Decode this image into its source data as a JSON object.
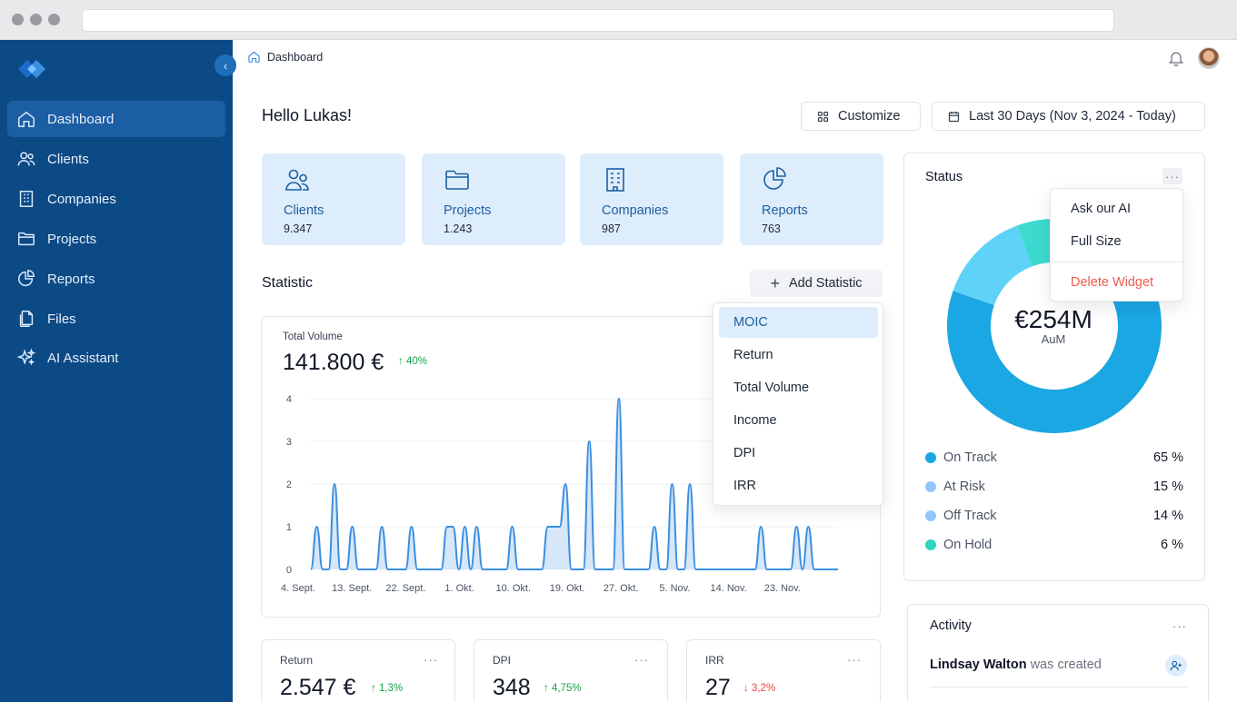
{
  "sidebar": {
    "items": [
      {
        "label": "Dashboard",
        "icon": "home-icon",
        "active": true
      },
      {
        "label": "Clients",
        "icon": "users-icon"
      },
      {
        "label": "Companies",
        "icon": "building-icon"
      },
      {
        "label": "Projects",
        "icon": "folder-icon"
      },
      {
        "label": "Reports",
        "icon": "pie-chart-icon"
      },
      {
        "label": "Files",
        "icon": "files-icon"
      },
      {
        "label": "AI Assistant",
        "icon": "sparkles-icon"
      }
    ]
  },
  "header": {
    "breadcrumb": "Dashboard"
  },
  "greeting": "Hello Lukas!",
  "toolbar": {
    "customize_label": "Customize",
    "date_range_label": "Last 30 Days (Nov 3, 2024 - Today)"
  },
  "cards": [
    {
      "label": "Clients",
      "value": "9.347"
    },
    {
      "label": "Projects",
      "value": "1.243"
    },
    {
      "label": "Companies",
      "value": "987"
    },
    {
      "label": "Reports",
      "value": "763"
    }
  ],
  "statistic": {
    "title": "Statistic",
    "add_label": "Add Statistic",
    "menu": [
      "MOIC",
      "Return",
      "Total Volume",
      "Income",
      "DPI",
      "IRR"
    ],
    "selected": "MOIC"
  },
  "volume": {
    "title": "Total Volume",
    "value": "141.800 €",
    "delta": "40%"
  },
  "chart_data": {
    "type": "area",
    "title": "",
    "xlabel": "",
    "ylabel": "",
    "ylim": [
      0,
      4
    ],
    "yticks": [
      "0",
      "1",
      "2",
      "3",
      "4"
    ],
    "xticks": [
      "4. Sept.",
      "13. Sept.",
      "22. Sept.",
      "1. Okt.",
      "10. Okt.",
      "19. Okt.",
      "27. Okt.",
      "5. Nov.",
      "14. Nov.",
      "23. Nov."
    ],
    "x": [
      0,
      1,
      2,
      3,
      4,
      5,
      6,
      7,
      8,
      9,
      10,
      11,
      12,
      13,
      14,
      15,
      16,
      17,
      18,
      19,
      20,
      21,
      22,
      23,
      24,
      25,
      26,
      27,
      28,
      29,
      30,
      31,
      32,
      33,
      34,
      35,
      36,
      37,
      38,
      39,
      40,
      41,
      42,
      43,
      44,
      45,
      46,
      47,
      48,
      49,
      50,
      51,
      52,
      53,
      54,
      55,
      56,
      57,
      58,
      59,
      60,
      61,
      62,
      63,
      64,
      65,
      66,
      67,
      68,
      69,
      70,
      71,
      72,
      73,
      74,
      75,
      76,
      77,
      78,
      79,
      80,
      81,
      82,
      83,
      84,
      85,
      86,
      87,
      88,
      89
    ],
    "values": [
      0,
      1,
      0,
      0,
      2,
      0,
      0,
      1,
      0,
      0,
      0,
      0,
      1,
      0,
      0,
      0,
      0,
      1,
      0,
      0,
      0,
      0,
      0,
      1,
      1,
      0,
      1,
      0,
      1,
      0,
      0,
      0,
      0,
      0,
      1,
      0,
      0,
      0,
      0,
      0,
      1,
      1,
      1,
      2,
      0,
      0,
      0,
      3,
      0,
      0,
      0,
      0,
      4,
      0,
      0,
      0,
      0,
      0,
      1,
      0,
      0,
      2,
      0,
      0,
      2,
      0,
      0,
      0,
      0,
      0,
      0,
      0,
      0,
      0,
      0,
      0,
      1,
      0,
      0,
      0,
      0,
      0,
      1,
      0,
      1,
      0,
      0,
      0,
      0,
      0
    ],
    "grid": true,
    "color": "#3b8fe0"
  },
  "status": {
    "title": "Status",
    "center_value": "€254M",
    "center_label": "AuM",
    "menu": {
      "ask_ai": "Ask our AI",
      "full_size": "Full Size",
      "delete": "Delete Widget"
    },
    "donut": [
      {
        "name": "On Track",
        "value": 65,
        "color": "#1aa7e3"
      },
      {
        "name": "At Risk",
        "value": 15,
        "color": "#82bff7"
      },
      {
        "name": "Off Track",
        "value": 14,
        "color": "#5ed3f7"
      },
      {
        "name": "On Hold",
        "value": 6,
        "color": "#3ddbcf"
      }
    ],
    "legend": [
      {
        "name": "On Track",
        "pct": "65 %",
        "color": "#1aa7e3"
      },
      {
        "name": "At Risk",
        "pct": "15 %",
        "color": "#93c5fd"
      },
      {
        "name": "Off Track",
        "pct": "14 %",
        "color": "#93c5fd"
      },
      {
        "name": "On Hold",
        "pct": "6 %",
        "color": "#2dd4bf"
      }
    ]
  },
  "activity": {
    "title": "Activity",
    "entries": [
      {
        "name": "Lindsay Walton",
        "text": "was created"
      }
    ]
  },
  "metrics": [
    {
      "title": "Return",
      "value": "2.547 €",
      "delta": "1,3%",
      "dir": "up"
    },
    {
      "title": "DPI",
      "value": "348",
      "delta": "4,75%",
      "dir": "up"
    },
    {
      "title": "IRR",
      "value": "27",
      "delta": "3,2%",
      "dir": "down"
    }
  ]
}
